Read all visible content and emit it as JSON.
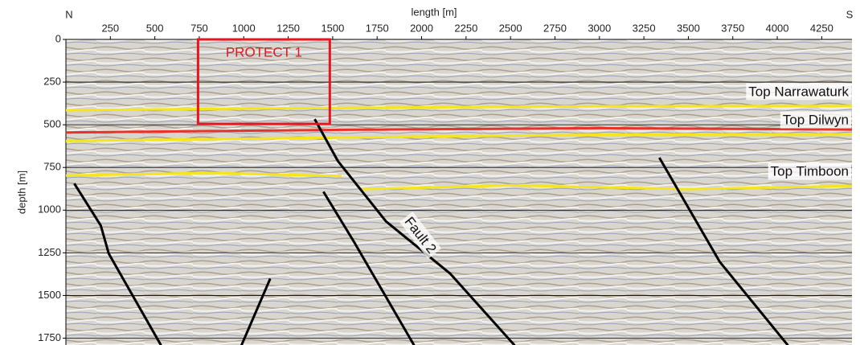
{
  "chart_data": {
    "type": "line",
    "x_label": "length [m]",
    "y_label": "depth [m]",
    "left_label": "N",
    "right_label": "S",
    "xlim": [
      0,
      4420
    ],
    "ylim": [
      0,
      1790
    ],
    "y_inverted": true,
    "x_axis_position": "top",
    "xticks": [
      250,
      500,
      750,
      1000,
      1250,
      1500,
      1750,
      2000,
      2250,
      2500,
      2750,
      3000,
      3250,
      3500,
      3750,
      4000,
      4250
    ],
    "yticks": [
      0,
      250,
      500,
      750,
      1000,
      1250,
      1500,
      1750
    ],
    "grid": true,
    "series": [
      {
        "name": "Top Narrawaturk",
        "color": "#f5e61a",
        "x": [
          0,
          1000,
          2000,
          3000,
          4420
        ],
        "values": [
          415,
          405,
          398,
          392,
          390
        ]
      },
      {
        "color": "#e8322a",
        "x": [
          0,
          1500,
          3000,
          4420
        ],
        "values": [
          545,
          530,
          520,
          528
        ]
      },
      {
        "name": "Top Dilwyn",
        "color": "#f5e61a",
        "x": [
          0,
          1500,
          3000,
          4420
        ],
        "values": [
          595,
          575,
          558,
          556
        ]
      },
      {
        "name": "Top Timboon",
        "color": "#f5e61a",
        "x": [
          0,
          800,
          1550,
          1600,
          1665,
          2500,
          3500,
          4420
        ],
        "values": [
          797,
          782,
          800,
          null,
          877,
          855,
          877,
          858
        ]
      },
      {
        "color": "#000000",
        "x": [
          47,
          196,
          241,
          535
        ],
        "values": [
          844,
          1090,
          1255,
          1792
        ]
      },
      {
        "color": "#000000",
        "x": [
          1399,
          1529,
          1800,
          2162,
          2523
        ],
        "values": [
          467,
          712,
          1066,
          1373,
          1792
        ]
      },
      {
        "color": "#000000",
        "x": [
          1448,
          1619,
          1958
        ],
        "values": [
          892,
          1184,
          1792
        ]
      },
      {
        "color": "#000000",
        "x": [
          1149,
          987
        ],
        "values": [
          1401,
          1792
        ]
      },
      {
        "color": "#000000",
        "x": [
          3337,
          3676,
          4060
        ],
        "values": [
          693,
          1302,
          1792
        ]
      }
    ],
    "annotations": [
      {
        "text": "Fault 2",
        "x": 1990,
        "y": 1150
      }
    ],
    "box": {
      "label": "PROTECT 1",
      "color": "#e8141e",
      "xlim": [
        743,
        1484
      ],
      "ylim": [
        0,
        495
      ]
    }
  }
}
